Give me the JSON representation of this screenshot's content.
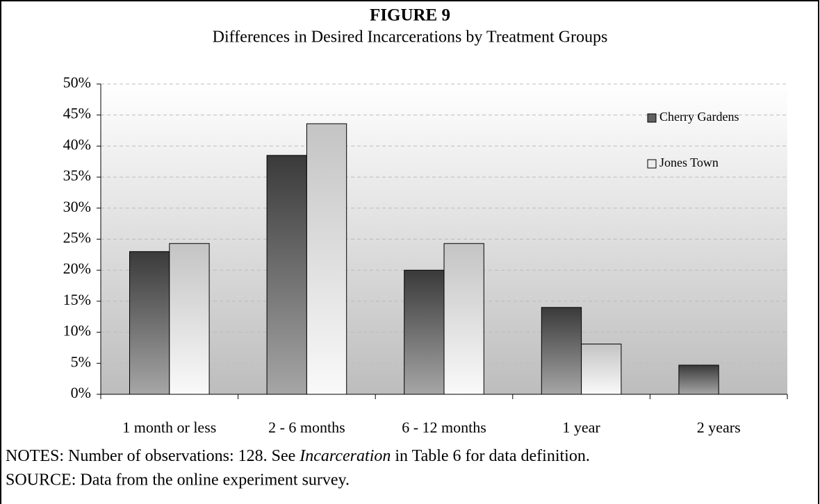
{
  "chart_data": {
    "type": "bar",
    "title": "FIGURE 9",
    "subtitle": "Differences in Desired Incarcerations by Treatment Groups",
    "categories": [
      "1 month or less",
      "2 - 6 months",
      "6 - 12 months",
      "1 year",
      "2 years"
    ],
    "series": [
      {
        "name": "Cherry Gardens",
        "color": "#3a3a3a",
        "values": [
          23,
          38.5,
          20,
          14,
          4.7
        ]
      },
      {
        "name": "Jones Town",
        "color": "#c4c4c4",
        "values": [
          24.3,
          43.6,
          24.3,
          8.1,
          0
        ]
      }
    ],
    "ylim": [
      0,
      50
    ],
    "yticks": [
      {
        "value": 0,
        "label": "0%"
      },
      {
        "value": 5,
        "label": "5%"
      },
      {
        "value": 10,
        "label": "10%"
      },
      {
        "value": 15,
        "label": "15%"
      },
      {
        "value": 20,
        "label": "20%"
      },
      {
        "value": 25,
        "label": "25%"
      },
      {
        "value": 30,
        "label": "30%"
      },
      {
        "value": 35,
        "label": "35%"
      },
      {
        "value": 40,
        "label": "40%"
      },
      {
        "value": 45,
        "label": "45%"
      },
      {
        "value": 50,
        "label": "50%"
      }
    ],
    "grid": true,
    "legend": "top-right",
    "notes": [
      "NOTES: Number of observations: 128. See ",
      "Incarceration",
      " in Table 6 for data definition."
    ],
    "source": "SOURCE: Data from the online experiment survey."
  }
}
